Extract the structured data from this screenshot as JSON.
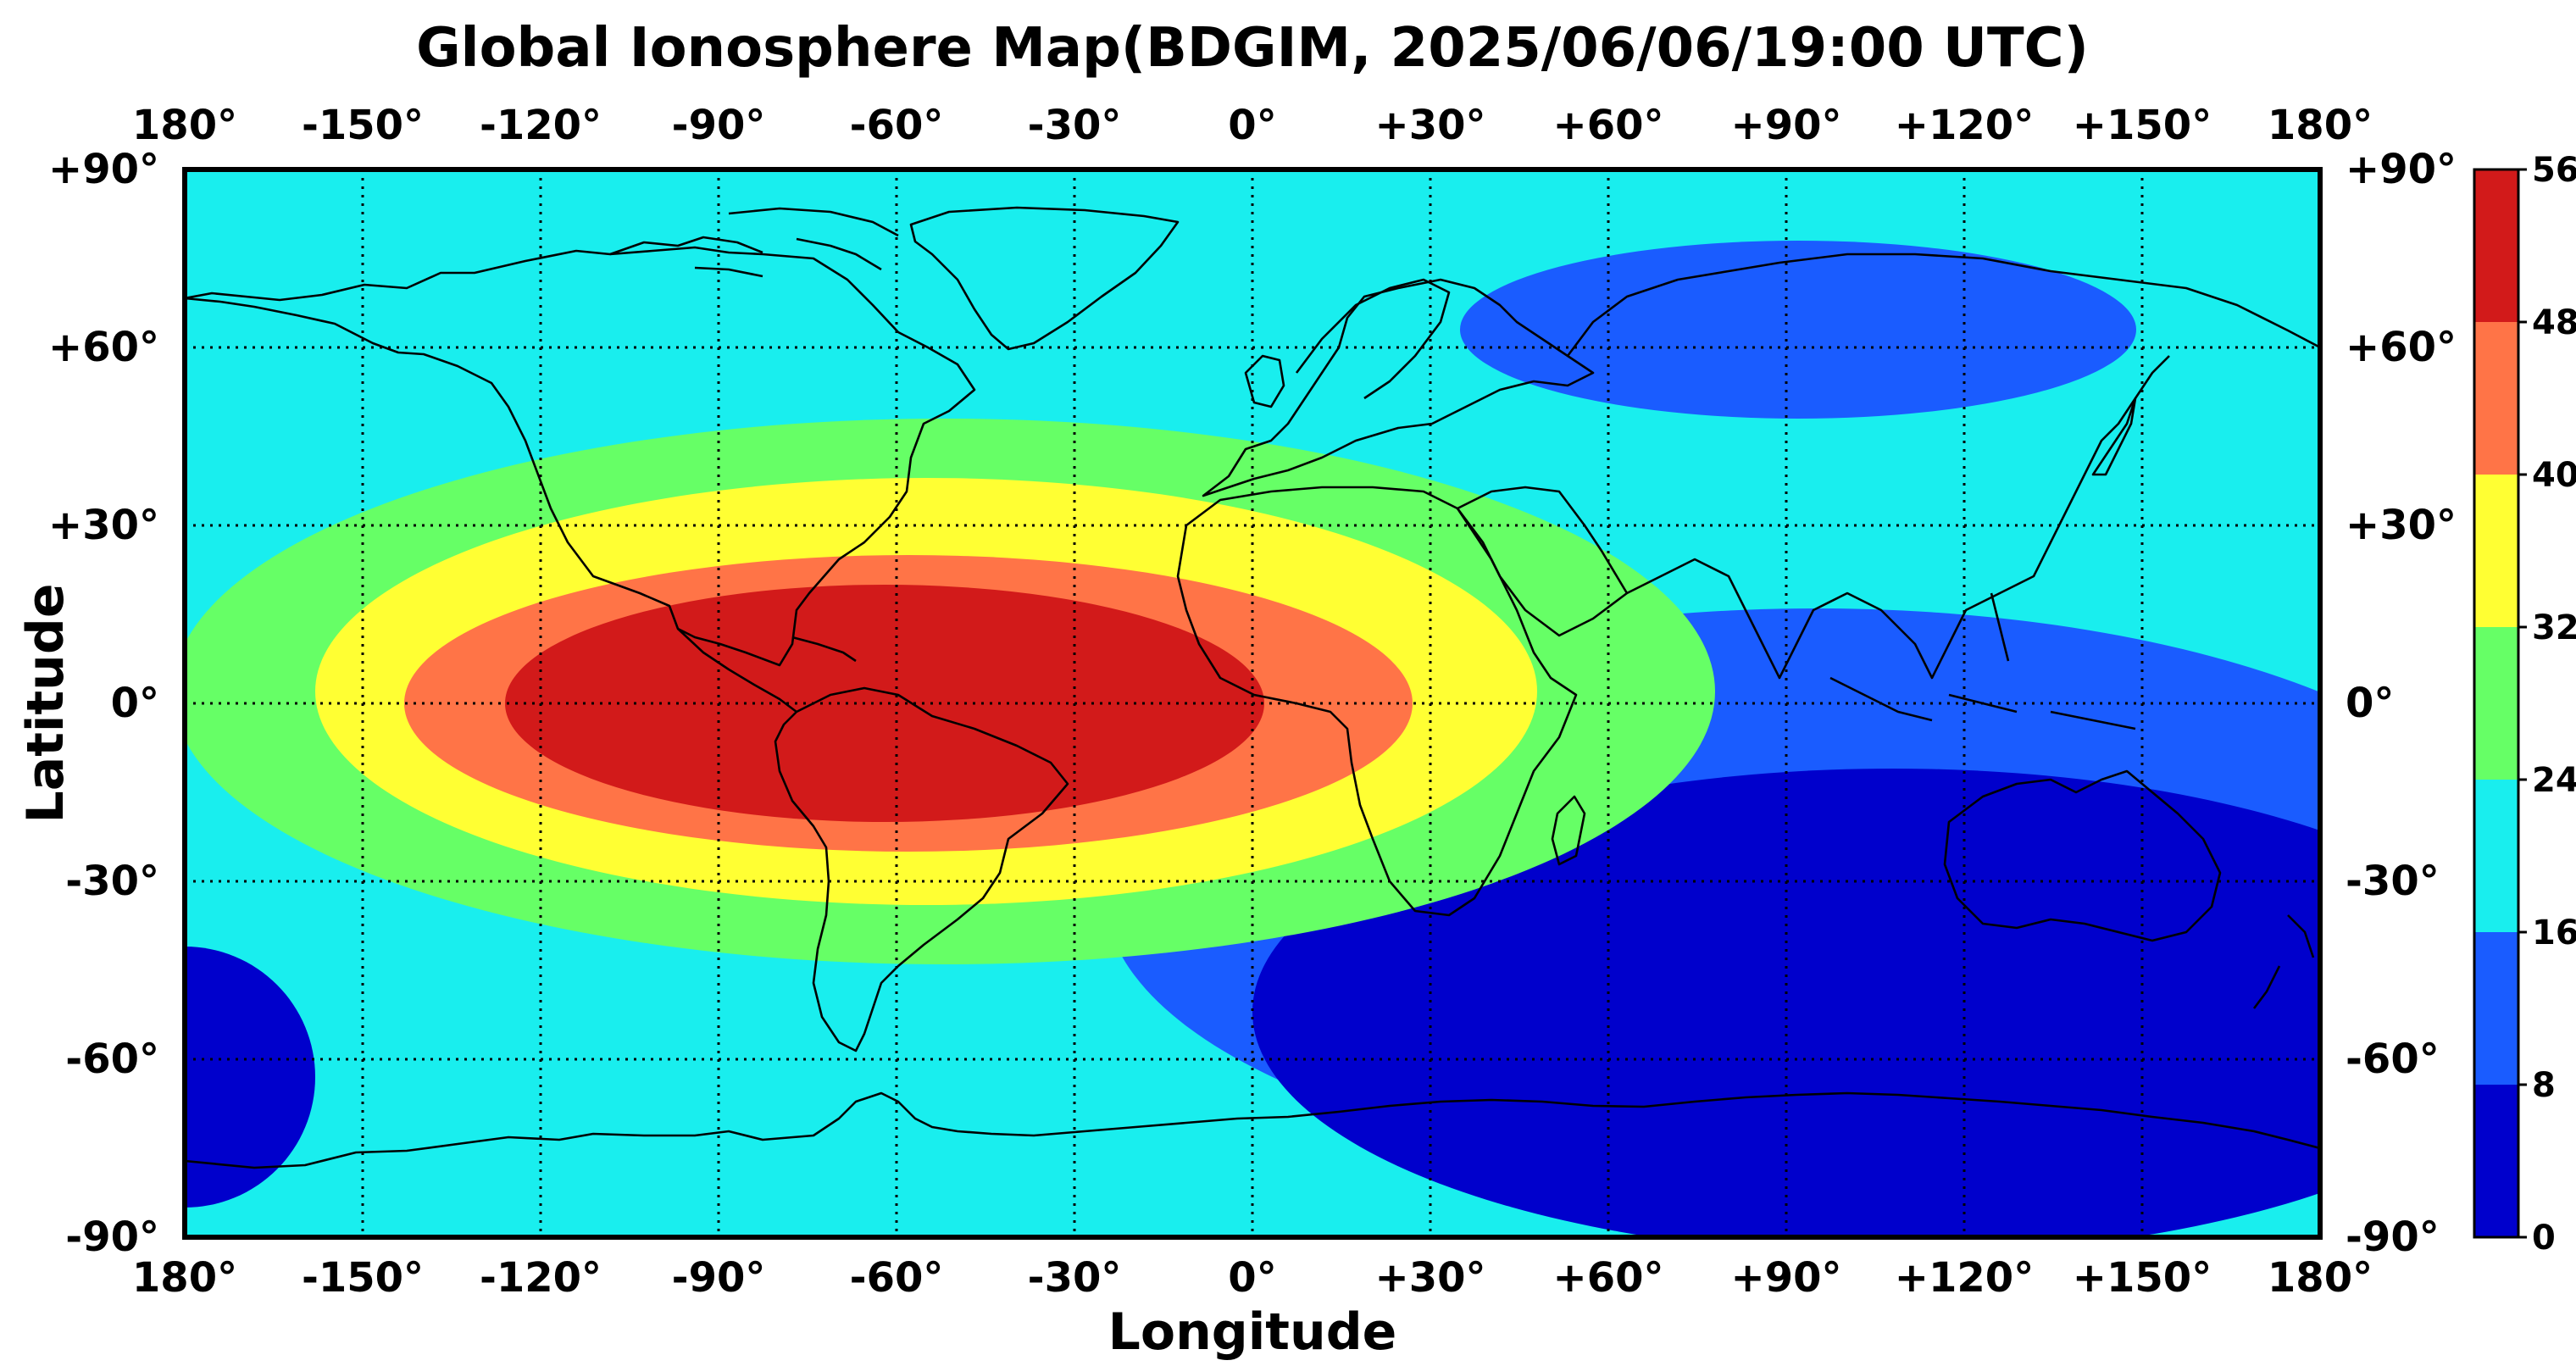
{
  "chart_data": {
    "type": "heatmap",
    "title": "Global Ionosphere Map(BDGIM, 2025/06/06/19:00 UTC)",
    "xlabel": "Longitude",
    "ylabel": "Latitude",
    "xlim": [
      -180,
      180
    ],
    "ylim": [
      -90,
      90
    ],
    "grid": true,
    "x_ticks": [
      {
        "value": -180,
        "label": "180°"
      },
      {
        "value": -150,
        "label": "-150°"
      },
      {
        "value": -120,
        "label": "-120°"
      },
      {
        "value": -90,
        "label": "-90°"
      },
      {
        "value": -60,
        "label": "-60°"
      },
      {
        "value": -30,
        "label": "-30°"
      },
      {
        "value": 0,
        "label": "0°"
      },
      {
        "value": 30,
        "label": "+30°"
      },
      {
        "value": 60,
        "label": "+60°"
      },
      {
        "value": 90,
        "label": "+90°"
      },
      {
        "value": 120,
        "label": "+120°"
      },
      {
        "value": 150,
        "label": "+150°"
      },
      {
        "value": 180,
        "label": "180°"
      }
    ],
    "y_ticks": [
      {
        "value": 90,
        "label": "+90°"
      },
      {
        "value": 60,
        "label": "+60°"
      },
      {
        "value": 30,
        "label": "+30°"
      },
      {
        "value": 0,
        "label": "0°"
      },
      {
        "value": -30,
        "label": "-30°"
      },
      {
        "value": -60,
        "label": "-60°"
      },
      {
        "value": -90,
        "label": "-90°"
      }
    ],
    "colorbar": {
      "levels": [
        0,
        8,
        16,
        24,
        32,
        40,
        48,
        56
      ],
      "tick_labels": [
        "0",
        "8",
        "16",
        "24",
        "32",
        "40",
        "48",
        "56"
      ],
      "colors": [
        "#0000cc",
        "#1a5cff",
        "#19eeee",
        "#66ff66",
        "#ffff33",
        "#ff7447",
        "#d21a1a"
      ]
    },
    "regions": [
      {
        "name": "northern-low",
        "level": 8,
        "lon": 92,
        "lat": 63,
        "rlon": 57,
        "rlat": 15
      },
      {
        "name": "southeast-low",
        "level": 8,
        "lon": 95,
        "lat": -32,
        "rlon": 120,
        "rlat": 48
      },
      {
        "name": "southeast-min",
        "level": 0,
        "lon": 108,
        "lat": -52,
        "rlon": 108,
        "rlat": 41
      },
      {
        "name": "southwest-min",
        "level": 0,
        "lon": -180,
        "lat": -63,
        "rlon": 22,
        "rlat": 22
      },
      {
        "name": "anomaly-24",
        "level": 24,
        "lon": -52,
        "lat": 2,
        "rlon": 130,
        "rlat": 46
      },
      {
        "name": "anomaly-32",
        "level": 32,
        "lon": -55,
        "lat": 2,
        "rlon": 103,
        "rlat": 36
      },
      {
        "name": "anomaly-40",
        "level": 40,
        "lon": -58,
        "lat": 0,
        "rlon": 85,
        "rlat": 25
      },
      {
        "name": "anomaly-48",
        "level": 48,
        "lon": -62,
        "lat": 0,
        "rlon": 64,
        "rlat": 20
      }
    ]
  }
}
